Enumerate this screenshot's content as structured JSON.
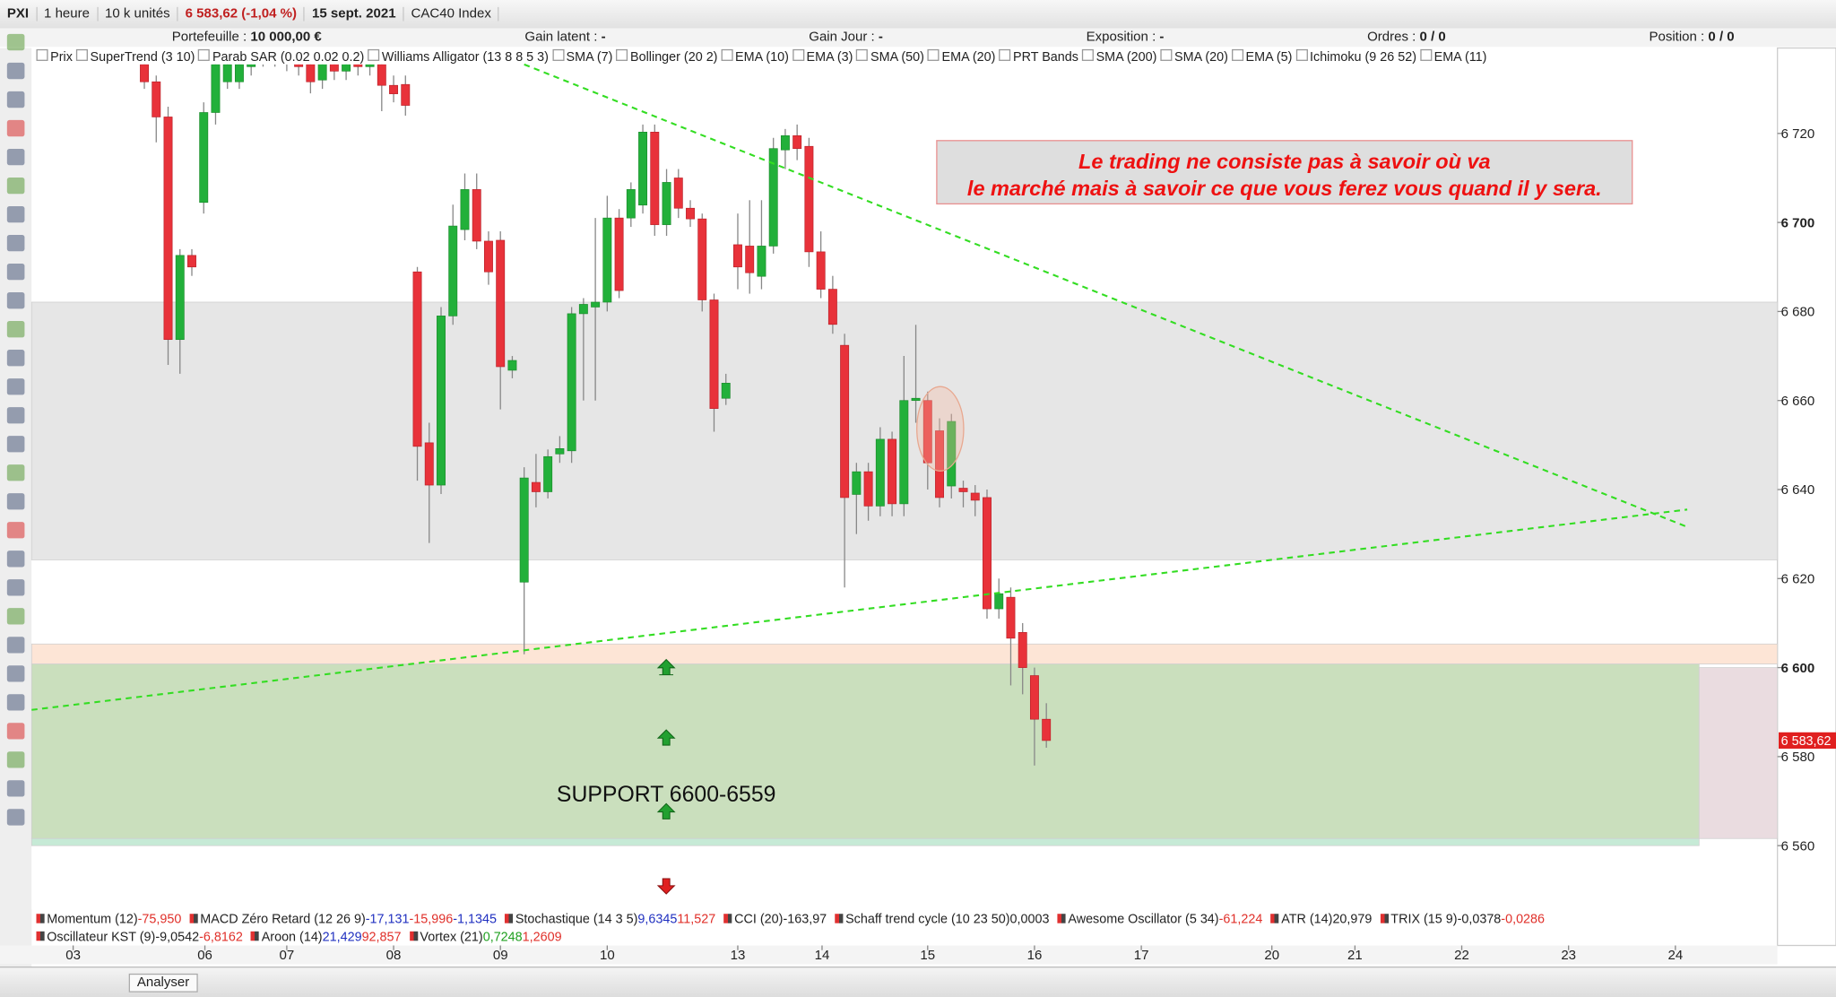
{
  "toolbar": {
    "symbol": "PXI",
    "timeframe": "1 heure",
    "units": "10 k unités",
    "price": "6 583,62 (-1,04 %)",
    "date": "15 sept. 2021",
    "instrument": "CAC40 Index"
  },
  "info": [
    {
      "label": "Portefeuille :",
      "value": "10 000,00 €"
    },
    {
      "label": "Gain latent :",
      "value": "-"
    },
    {
      "label": "Gain Jour :",
      "value": "-"
    },
    {
      "label": "Exposition :",
      "value": "-"
    },
    {
      "label": "Ordres :",
      "value": "0 / 0"
    },
    {
      "label": "Position :",
      "value": "0 / 0"
    }
  ],
  "overlays": [
    "Prix",
    "SuperTrend (3 10)",
    "Parab SAR (0.02 0.02 0.2)",
    "Williams Alligator (13 8 8 5 3)",
    "SMA (7)",
    "Bollinger (20 2)",
    "EMA (10)",
    "EMA (3)",
    "SMA (50)",
    "EMA (20)",
    "PRT Bands",
    "SMA (200)",
    "SMA (20)",
    "EMA (5)",
    "Ichimoku (9 26 52)",
    "EMA (11)"
  ],
  "indicators": [
    [
      {
        "name": "Momentum (12)",
        "values": [
          {
            "text": "-75,950",
            "color": "#e0302a"
          }
        ]
      },
      {
        "name": "MACD Zéro Retard (12 26 9)",
        "values": [
          {
            "text": "-17,131",
            "color": "#2030c0"
          },
          {
            "text": "-15,996",
            "color": "#e0302a"
          },
          {
            "text": "-1,1345",
            "color": "#2030c0"
          }
        ]
      },
      {
        "name": "Stochastique (14 3 5)",
        "values": [
          {
            "text": "9,6345",
            "color": "#2030c0"
          },
          {
            "text": "11,527",
            "color": "#e0302a"
          }
        ]
      },
      {
        "name": "CCI (20)",
        "values": [
          {
            "text": "-163,97",
            "color": "#222222"
          }
        ]
      },
      {
        "name": "Schaff trend cycle (10 23 50)",
        "values": [
          {
            "text": "0,0003",
            "color": "#222222"
          }
        ]
      },
      {
        "name": "Awesome Oscillator (5 34)",
        "values": [
          {
            "text": "-61,224",
            "color": "#e0302a"
          }
        ]
      },
      {
        "name": "ATR (14)",
        "values": [
          {
            "text": "20,979",
            "color": "#222222"
          }
        ]
      },
      {
        "name": "TRIX (15 9)",
        "values": [
          {
            "text": "-0,0378",
            "color": "#222222"
          },
          {
            "text": "-0,0286",
            "color": "#e0302a"
          }
        ]
      }
    ],
    [
      {
        "name": "Oscillateur KST (9)",
        "values": [
          {
            "text": "-9,0542",
            "color": "#222222"
          },
          {
            "text": "-6,8162",
            "color": "#e0302a"
          }
        ]
      },
      {
        "name": "Aroon (14)",
        "values": [
          {
            "text": "21,429",
            "color": "#2030c0"
          },
          {
            "text": "92,857",
            "color": "#e0302a"
          }
        ]
      },
      {
        "name": "Vortex (21)",
        "values": [
          {
            "text": "0,7248",
            "color": "#20a020"
          },
          {
            "text": "1,2609",
            "color": "#e0302a"
          }
        ]
      }
    ]
  ],
  "bottom_button": "Analyser",
  "chart_data": {
    "type": "candlestick",
    "up_color": "#22b03a",
    "down_color": "#e8323a",
    "open": [
      6735.5,
      6731.6,
      6723.7,
      6673.7,
      6692.6,
      6704.5,
      6724.7,
      6731.6,
      6731.6,
      6735,
      6740,
      6737,
      6740,
      6738,
      6735.5,
      6732,
      6737,
      6734,
      6737,
      6735,
      6735.5,
      6730.8,
      6731,
      6688.9,
      6650.5,
      6641,
      6679,
      6698.4,
      6707.4,
      6695.8,
      6696,
      6666.8,
      6619.2,
      6641.6,
      6639.5,
      6648,
      6648.7,
      6679.5,
      6681,
      6682.1,
      6701,
      6701,
      6703.9,
      6720.3,
      6699.5,
      6710,
      6703.2,
      6700.8,
      6682.6,
      6660.5,
      6695,
      6694.7,
      6687.9,
      6694.7,
      6716.3,
      6719.5,
      6717.1,
      6693.4,
      6685,
      6672.4,
      6638.9,
      6644,
      6636.3,
      6651.3,
      6636.8,
      6660,
      6660,
      6653.2,
      6640.8,
      6640.3,
      6639.2,
      6638.2,
      6613.2,
      6615.8,
      6607.9,
      6598.2,
      6588.4
    ],
    "high": [
      6737,
      6733,
      6726,
      6694,
      6694,
      6727,
      6738,
      6738,
      6738,
      6740,
      6742,
      6742,
      6742,
      6740,
      6737,
      6738,
      6739,
      6739,
      6739,
      6740,
      6737,
      6733,
      6733,
      6690,
      6655,
      6681,
      6704,
      6711,
      6711,
      6698,
      6698,
      6670,
      6645,
      6648,
      6649,
      6652,
      6681,
      6683,
      6701,
      6706,
      6703,
      6709,
      6722,
      6722,
      6712,
      6712,
      6705,
      6702,
      6684,
      6666,
      6702,
      6705,
      6705,
      6719,
      6721,
      6722,
      6719,
      6698,
      6688,
      6675,
      6646,
      6646,
      6654,
      6653,
      6670,
      6677,
      6662,
      6656,
      6657,
      6642,
      6641,
      6640,
      6620,
      6618,
      6610,
      6600,
      6592
    ],
    "low": [
      6730,
      6718,
      6668,
      6666,
      6688,
      6702,
      6722,
      6730,
      6730,
      6733,
      6735,
      6735,
      6734,
      6733,
      6729,
      6730,
      6732,
      6732,
      6733,
      6733,
      6725,
      6727,
      6724,
      6642,
      6628,
      6639,
      6677,
      6696,
      6694,
      6686,
      6658,
      6665,
      6603,
      6636,
      6638,
      6646,
      6646,
      6660,
      6660,
      6680,
      6683,
      6699,
      6702,
      6697,
      6697,
      6701,
      6699,
      6680,
      6653,
      6659,
      6685,
      6684,
      6685,
      6693,
      6712,
      6714,
      6690,
      6683,
      6675,
      6618,
      6630,
      6633,
      6634,
      6634,
      6634,
      6655,
      6640,
      6636,
      6638,
      6636,
      6634,
      6611,
      6611,
      6596,
      6594,
      6578,
      6582
    ],
    "close": [
      6731.6,
      6723.7,
      6673.7,
      6692.6,
      6690,
      6724.7,
      6735.5,
      6735.5,
      6735.5,
      6738,
      6737,
      6740,
      6736,
      6735,
      6731.6,
      6736,
      6734,
      6737,
      6735,
      6738,
      6730.8,
      6728.9,
      6726.3,
      6649.7,
      6641,
      6679,
      6699.2,
      6707.4,
      6695.8,
      6688.9,
      6667.6,
      6669,
      6642.6,
      6639.5,
      6647.4,
      6649.2,
      6679.5,
      6681.6,
      6682.1,
      6701,
      6684.7,
      6707.4,
      6720.3,
      6699.5,
      6709,
      6703.2,
      6700.8,
      6682.6,
      6658.2,
      6663.9,
      6690,
      6688.7,
      6694.7,
      6716.6,
      6719.5,
      6716.6,
      6693.4,
      6685,
      6677.1,
      6638.2,
      6644,
      6636.3,
      6651.3,
      6636.8,
      6660,
      6660.5,
      6646,
      6638.2,
      6655.3,
      6639.5,
      6637.6,
      6613.2,
      6616.6,
      6606.6,
      6600,
      6588.4,
      6583.62
    ],
    "xlim": [
      -9.5,
      137.6
    ],
    "ylim": [
      6546,
      6735.5
    ],
    "xticks": [
      {
        "value": -6,
        "label": "03"
      },
      {
        "value": 5.1,
        "label": "06"
      },
      {
        "value": 12,
        "label": "07"
      },
      {
        "value": 21,
        "label": "08"
      },
      {
        "value": 30,
        "label": "09"
      },
      {
        "value": 39,
        "label": "10"
      },
      {
        "value": 50,
        "label": "13"
      },
      {
        "value": 57.1,
        "label": "14"
      },
      {
        "value": 66,
        "label": "15"
      },
      {
        "value": 75,
        "label": "16"
      },
      {
        "value": 84,
        "label": "17"
      },
      {
        "value": 95,
        "label": "20"
      },
      {
        "value": 102,
        "label": "21"
      },
      {
        "value": 111,
        "label": "22"
      },
      {
        "value": 120,
        "label": "23"
      },
      {
        "value": 129,
        "label": "24"
      }
    ],
    "yticks": [
      {
        "value": 6560,
        "label": "6 560"
      },
      {
        "value": 6580,
        "label": "6 580"
      },
      {
        "value": 6600,
        "label": "6 600"
      },
      {
        "value": 6620,
        "label": "6 620"
      },
      {
        "value": 6640,
        "label": "6 640"
      },
      {
        "value": 6660,
        "label": "6 660"
      },
      {
        "value": 6680,
        "label": "6 680"
      },
      {
        "value": 6700,
        "label": "6 700"
      },
      {
        "value": 6720,
        "label": "6 720"
      }
    ],
    "last_price": {
      "value": 6583.62,
      "label": "6 583,62"
    },
    "zones": [
      {
        "ymin": 6624.2,
        "ymax": 6682.1,
        "color": "#e6e6e6"
      },
      {
        "ymin": 6600.8,
        "ymax": 6605.3,
        "color": "#fde5d6"
      },
      {
        "ymin": 6561.6,
        "ymax": 6600.8,
        "xmax": 131,
        "color": "#cadfbd"
      },
      {
        "ymin": 6560,
        "ymax": 6561.6,
        "xmax": 131,
        "color": "#c6ead6"
      },
      {
        "ymin": 6561.6,
        "ymax": 6600,
        "xmin": 131,
        "color": "#eadce0"
      }
    ],
    "trendlines": [
      {
        "x": [
          32,
          130
        ],
        "y": [
          6735.5,
          6631.6
        ]
      },
      {
        "x": [
          -9.5,
          130
        ],
        "y": [
          6590.5,
          6635.5
        ]
      }
    ],
    "trend_color": "#33dd22",
    "quote": [
      "Le trading ne consiste pas à savoir où va",
      "le marché mais à savoir ce que vous ferez vous quand il y sera."
    ],
    "support_label": "SUPPORT 6600-6559"
  }
}
